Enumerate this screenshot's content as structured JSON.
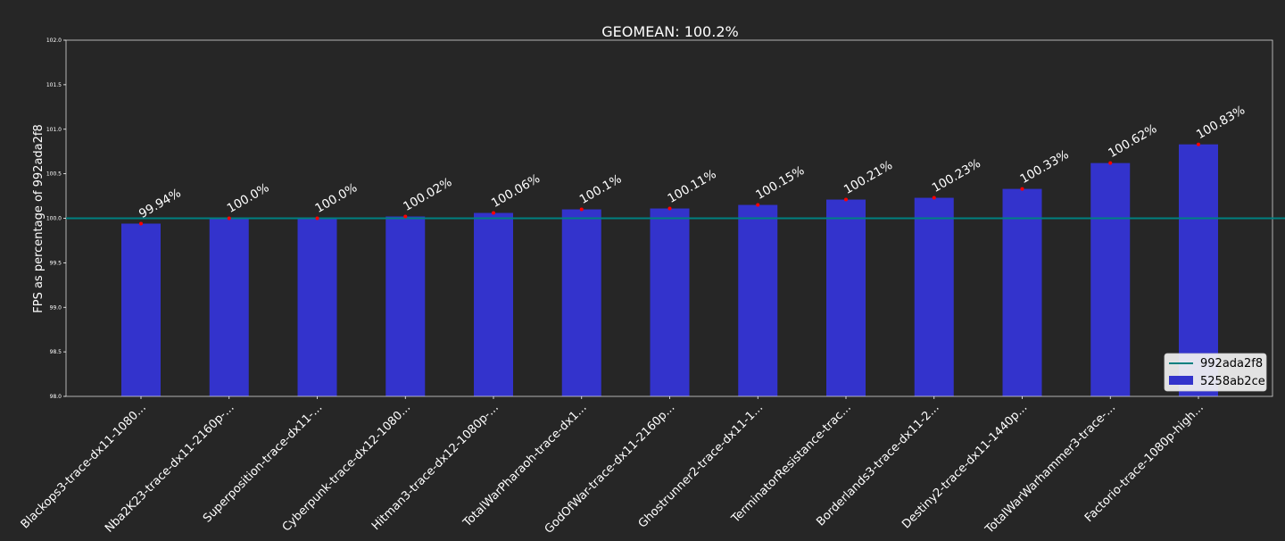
{
  "chart_data": {
    "type": "bar",
    "title": "GEOMEAN: 100.2%",
    "ylabel": "FPS as percentage of 992ada2f8",
    "xlabel": "",
    "ylim": [
      98.0,
      102.0
    ],
    "yticks": [
      "98.0",
      "98.5",
      "99.0",
      "99.5",
      "100.0",
      "100.5",
      "101.0",
      "101.5",
      "102.0"
    ],
    "categories": [
      "Blackops3-trace-dx11-1080...",
      "Nba2K23-trace-dx11-2160p-...",
      "Superposition-trace-dx11-...",
      "Cyberpunk-trace-dx12-1080...",
      "Hitman3-trace-dx12-1080p-...",
      "TotalWarPharaoh-trace-dx1...",
      "GodOfWar-trace-dx11-2160p...",
      "Ghostrunner2-trace-dx11-1...",
      "TerminatorResistance-trac...",
      "Borderlands3-trace-dx11-2...",
      "Destiny2-trace-dx11-1440p...",
      "TotalWarWarhammer3-trace-...",
      "Factorio-trace-1080p-high..."
    ],
    "values": [
      99.94,
      100.0,
      100.0,
      100.02,
      100.06,
      100.1,
      100.11,
      100.15,
      100.21,
      100.23,
      100.33,
      100.62,
      100.83
    ],
    "value_labels": [
      "99.94%",
      "100.0%",
      "100.0%",
      "100.02%",
      "100.06%",
      "100.1%",
      "100.11%",
      "100.15%",
      "100.21%",
      "100.23%",
      "100.33%",
      "100.62%",
      "100.83%"
    ],
    "baseline": 100.0,
    "series": [
      {
        "name": "992ada2f8",
        "kind": "line",
        "color": "#008080"
      },
      {
        "name": "5258ab2ce",
        "kind": "bar",
        "color": "#3333cc"
      }
    ],
    "marker_color": "#ff0000",
    "legend_position": "lower-right",
    "grid": false
  }
}
